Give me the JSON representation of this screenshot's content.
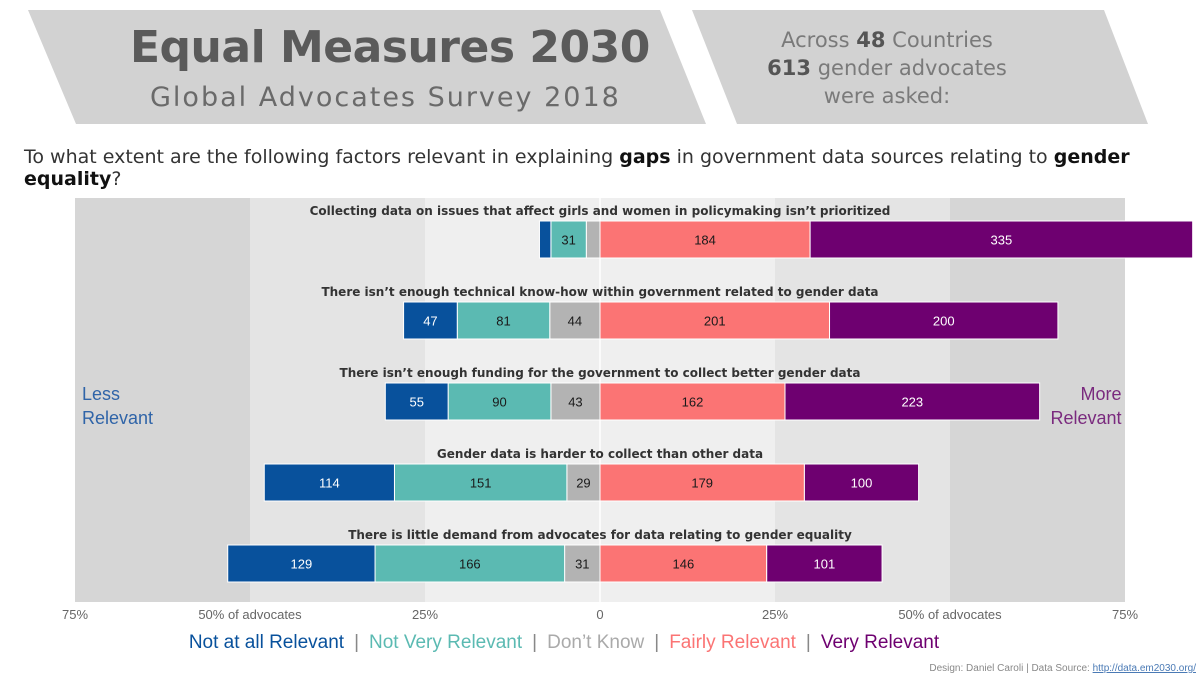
{
  "header": {
    "title": "Equal Measures 2030",
    "subtitle": "Global Advocates Survey 2018",
    "stats": {
      "line1_prefix": "Across",
      "countries": "48",
      "line1_suffix": "Countries",
      "advocates": "613",
      "line2_suffix": "gender advocates",
      "line3": "were asked:"
    }
  },
  "question": {
    "part1": "To what extent are the following factors relevant in explaining",
    "bold1": "gaps",
    "part2": "in government data sources relating to",
    "bold2": "gender equality",
    "part3": "?"
  },
  "side_labels": {
    "left": [
      "Less",
      "Relevant"
    ],
    "right": [
      "More",
      "Relevant"
    ]
  },
  "colors": {
    "not_at_all": "#08519c",
    "not_very": "#5bbab2",
    "dont_know": "#b3b3b3",
    "fairly": "#fb7474",
    "very": "#6e0070",
    "band_outer": "#d6d6d6",
    "band_mid": "#e4e4e4",
    "band_inner": "#efefef"
  },
  "legend": [
    {
      "label": "Not at all Relevant",
      "color": "#08519c"
    },
    {
      "label": "Not Very Relevant",
      "color": "#5bbab2"
    },
    {
      "label": "Don’t Know",
      "color": "#aaaaaa"
    },
    {
      "label": "Fairly Relevant",
      "color": "#fb7474"
    },
    {
      "label": "Very Relevant",
      "color": "#6e0070"
    }
  ],
  "footer": {
    "credit": "Design: Daniel Caroli  |  Data Source:",
    "link": "http://data.em2030.org/"
  },
  "chart_data": {
    "type": "bar",
    "orientation": "horizontal-diverging",
    "total_respondents": 613,
    "x_unit": "percent of advocates",
    "xlim": [
      -75,
      75
    ],
    "x_ticks": [
      {
        "value": -75,
        "label": "75%"
      },
      {
        "value": -50,
        "label": "50% of advocates"
      },
      {
        "value": -25,
        "label": "25%"
      },
      {
        "value": 0,
        "label": "0"
      },
      {
        "value": 25,
        "label": "25%"
      },
      {
        "value": 50,
        "label": "50% of advocates"
      },
      {
        "value": 75,
        "label": "75%"
      }
    ],
    "categories": [
      "Collecting data on issues that affect girls and women in policymaking isn’t prioritized",
      "There isn’t enough technical know-how within government related to gender data",
      "There isn’t enough funding for the government to collect better gender data",
      "Gender data is harder to collect than other data",
      "There is little demand from advocates for data relating to gender equality"
    ],
    "series": [
      {
        "name": "Not at all Relevant",
        "side": "negative",
        "values": [
          10,
          47,
          55,
          114,
          129
        ]
      },
      {
        "name": "Not Very Relevant",
        "side": "negative",
        "values": [
          31,
          81,
          90,
          151,
          166
        ]
      },
      {
        "name": "Don’t Know",
        "side": "negative",
        "values": [
          12,
          44,
          43,
          29,
          31
        ]
      },
      {
        "name": "Fairly Relevant",
        "side": "positive",
        "values": [
          184,
          201,
          162,
          179,
          146
        ]
      },
      {
        "name": "Very Relevant",
        "side": "positive",
        "values": [
          335,
          200,
          223,
          100,
          101
        ]
      }
    ],
    "data_labels": [
      [
        "",
        "31",
        "",
        "184",
        "335"
      ],
      [
        "47",
        "81",
        "44",
        "201",
        "200"
      ],
      [
        "55",
        "90",
        "43",
        "162",
        "223"
      ],
      [
        "114",
        "151",
        "29",
        "179",
        "100"
      ],
      [
        "129",
        "166",
        "31",
        "146",
        "101"
      ]
    ]
  }
}
